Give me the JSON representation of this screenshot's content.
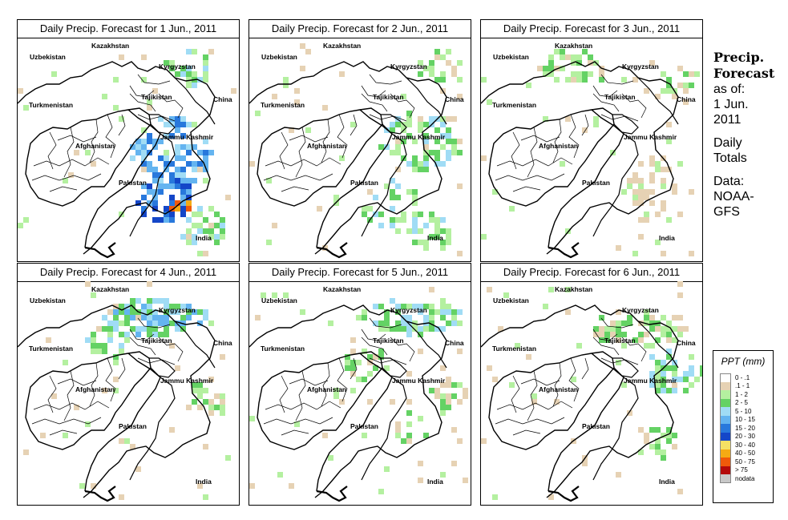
{
  "panels": [
    {
      "title": "Daily Precip. Forecast for  1 Jun., 2011",
      "day": 1
    },
    {
      "title": "Daily Precip. Forecast for  2 Jun., 2011",
      "day": 2
    },
    {
      "title": "Daily Precip. Forecast for  3 Jun., 2011",
      "day": 3
    },
    {
      "title": "Daily Precip. Forecast for  4 Jun., 2011",
      "day": 4
    },
    {
      "title": "Daily Precip. Forecast for  5 Jun., 2011",
      "day": 5
    },
    {
      "title": "Daily Precip. Forecast for  6 Jun., 2011",
      "day": 6
    }
  ],
  "map_labels": {
    "kazakhstan": "Kazakhstan",
    "uzbekistan": "Uzbekistan",
    "kyrgyzstan": "Kyrgyzstan",
    "tajikistan": "Tajikistan",
    "turkmenistan": "Turkmenistan",
    "china": "China",
    "jammu_kashmir": "Jammu Kashmir",
    "afghanistan": "Afghanistan",
    "pakistan": "Pakistan",
    "india": "India"
  },
  "info": {
    "heading_1": "Precip.",
    "heading_2": "Forecast",
    "asof_1": "as of:",
    "asof_2": "1 Jun.",
    "asof_3": "2011",
    "totals_1": "Daily",
    "totals_2": "Totals",
    "data_1": "Data:",
    "data_2": "NOAA-",
    "data_3": "GFS"
  },
  "legend": {
    "title": "PPT (mm)",
    "items": [
      {
        "label": "0 - .1",
        "color": "#ffffff"
      },
      {
        "label": ".1 - 1",
        "color": "#e6d2b4"
      },
      {
        "label": "1 - 2",
        "color": "#b4f0a0"
      },
      {
        "label": "2 - 5",
        "color": "#64d264"
      },
      {
        "label": "5 - 10",
        "color": "#a0dcf5"
      },
      {
        "label": "10 - 15",
        "color": "#64b4f0"
      },
      {
        "label": "15 - 20",
        "color": "#2878dc"
      },
      {
        "label": "20 - 30",
        "color": "#1446c8"
      },
      {
        "label": "30 - 40",
        "color": "#f5e164"
      },
      {
        "label": "40 - 50",
        "color": "#f5aa14"
      },
      {
        "label": "50 - 75",
        "color": "#f05a0a"
      },
      {
        "label": "> 75",
        "color": "#b40a0a"
      },
      {
        "label": "nodata",
        "color": "#c8c8c8"
      }
    ]
  }
}
